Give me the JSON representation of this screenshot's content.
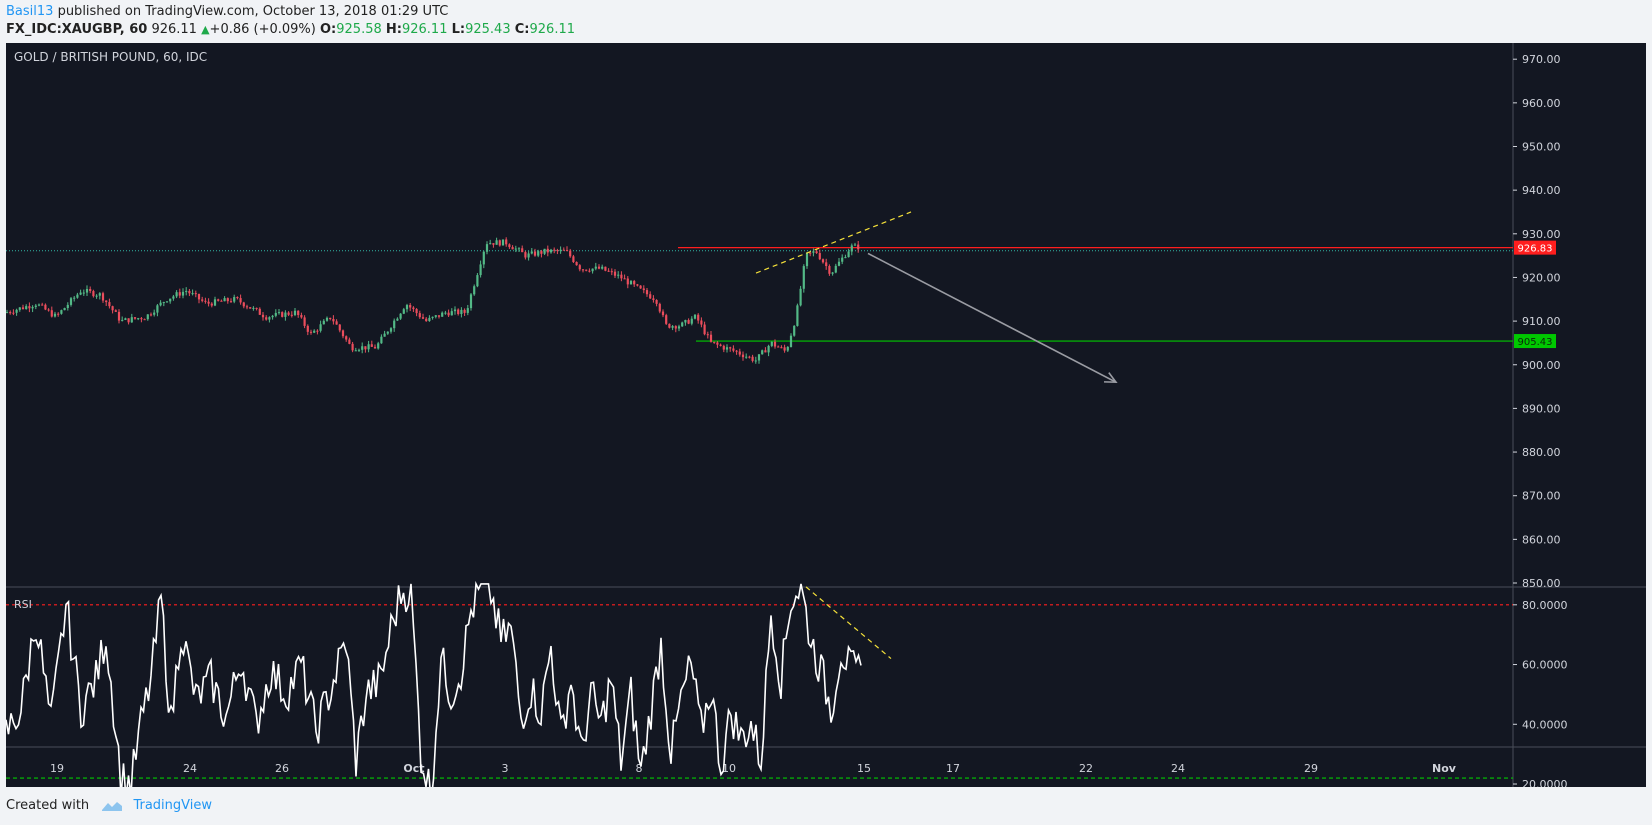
{
  "header": {
    "author": "Basil13",
    "published_text": " published on TradingView.com, October 13, 2018 01:29 UTC",
    "symbol": "FX_IDC:XAUGBP, 60",
    "price": "926.11",
    "change": "+0.86 (+0.09%)",
    "o_label": "O:",
    "o_value": "925.58",
    "h_label": "H:",
    "h_value": "926.11",
    "l_label": "L:",
    "l_value": "925.43",
    "c_label": "C:",
    "c_value": "926.11"
  },
  "footer": {
    "created_with": "Created with",
    "brand": "TradingView"
  },
  "colors": {
    "background": "#131722",
    "grid": "#2a2e39",
    "axis_text": "#d1d4dc",
    "up": "#53b987",
    "down": "#eb4d5c",
    "red_line": "#ff1e1e",
    "green_line": "#00c800",
    "rsi": "#ffffff",
    "trend_dashed": "#f6e23a",
    "arrow": "#9a9ca3"
  },
  "chart_data": {
    "type": "candlestick",
    "title": "GOLD / BRITISH POUND, 60, IDC",
    "y_ticks": [
      "970.00",
      "960.00",
      "950.00",
      "940.00",
      "930.00",
      "920.00",
      "910.00",
      "900.00",
      "890.00",
      "880.00",
      "870.00",
      "860.00",
      "850.00"
    ],
    "ylim": [
      850,
      973
    ],
    "x_ticks": [
      "19",
      "24",
      "26",
      "Oct",
      "3",
      "8",
      "10",
      "15",
      "17",
      "22",
      "24",
      "29",
      "Nov"
    ],
    "price_path": [
      [
        0,
        912
      ],
      [
        30,
        914
      ],
      [
        50,
        911
      ],
      [
        75,
        917
      ],
      [
        95,
        916
      ],
      [
        115,
        910
      ],
      [
        140,
        911
      ],
      [
        160,
        915
      ],
      [
        180,
        917
      ],
      [
        200,
        914
      ],
      [
        230,
        915
      ],
      [
        260,
        911
      ],
      [
        290,
        912
      ],
      [
        305,
        907
      ],
      [
        325,
        911
      ],
      [
        345,
        904
      ],
      [
        370,
        904
      ],
      [
        385,
        909
      ],
      [
        400,
        914
      ],
      [
        420,
        910
      ],
      [
        440,
        912
      ],
      [
        460,
        912
      ],
      [
        470,
        920
      ],
      [
        480,
        928
      ],
      [
        500,
        928
      ],
      [
        520,
        925
      ],
      [
        540,
        926
      ],
      [
        560,
        926
      ],
      [
        575,
        922
      ],
      [
        595,
        922
      ],
      [
        615,
        920
      ],
      [
        635,
        917
      ],
      [
        650,
        915
      ],
      [
        660,
        909
      ],
      [
        675,
        909
      ],
      [
        690,
        911
      ],
      [
        705,
        905
      ],
      [
        730,
        903
      ],
      [
        750,
        901
      ],
      [
        765,
        905
      ],
      [
        780,
        903
      ],
      [
        790,
        911
      ],
      [
        800,
        925
      ],
      [
        810,
        926
      ],
      [
        825,
        921
      ],
      [
        835,
        924
      ],
      [
        845,
        927
      ],
      [
        855,
        927
      ]
    ],
    "levels": [
      {
        "label": "926.83",
        "value": 926.83,
        "color": "#ff1e1e"
      },
      {
        "label": "905.43",
        "value": 905.43,
        "color": "#00c800"
      }
    ],
    "last_close": 926.11,
    "rsi": {
      "label": "RSI",
      "y_ticks": [
        "80.0000",
        "60.0000",
        "40.0000",
        "20.0000"
      ],
      "ylim": [
        10,
        90
      ],
      "overbought": 80,
      "oversold": 22,
      "path": [
        [
          0,
          37
        ],
        [
          15,
          45
        ],
        [
          30,
          75
        ],
        [
          45,
          40
        ],
        [
          60,
          80
        ],
        [
          75,
          45
        ],
        [
          90,
          55
        ],
        [
          100,
          70
        ],
        [
          115,
          22
        ],
        [
          125,
          20
        ],
        [
          135,
          40
        ],
        [
          145,
          55
        ],
        [
          155,
          82
        ],
        [
          165,
          40
        ],
        [
          175,
          72
        ],
        [
          190,
          48
        ],
        [
          205,
          55
        ],
        [
          220,
          42
        ],
        [
          235,
          62
        ],
        [
          250,
          40
        ],
        [
          265,
          58
        ],
        [
          280,
          50
        ],
        [
          295,
          60
        ],
        [
          310,
          38
        ],
        [
          325,
          52
        ],
        [
          340,
          68
        ],
        [
          350,
          28
        ],
        [
          360,
          50
        ],
        [
          375,
          55
        ],
        [
          385,
          72
        ],
        [
          395,
          84
        ],
        [
          405,
          85
        ],
        [
          415,
          30
        ],
        [
          425,
          17
        ],
        [
          435,
          62
        ],
        [
          445,
          50
        ],
        [
          455,
          58
        ],
        [
          465,
          78
        ],
        [
          475,
          86
        ],
        [
          485,
          84
        ],
        [
          495,
          68
        ],
        [
          505,
          72
        ],
        [
          515,
          42
        ],
        [
          525,
          52
        ],
        [
          535,
          44
        ],
        [
          545,
          66
        ],
        [
          555,
          36
        ],
        [
          565,
          55
        ],
        [
          575,
          30
        ],
        [
          585,
          50
        ],
        [
          595,
          40
        ],
        [
          605,
          55
        ],
        [
          615,
          28
        ],
        [
          625,
          50
        ],
        [
          635,
          24
        ],
        [
          645,
          45
        ],
        [
          655,
          67
        ],
        [
          665,
          30
        ],
        [
          675,
          48
        ],
        [
          685,
          60
        ],
        [
          695,
          38
        ],
        [
          705,
          52
        ],
        [
          715,
          26
        ],
        [
          725,
          44
        ],
        [
          735,
          35
        ],
        [
          745,
          40
        ],
        [
          755,
          28
        ],
        [
          765,
          78
        ],
        [
          775,
          55
        ],
        [
          785,
          82
        ],
        [
          795,
          86
        ],
        [
          805,
          68
        ],
        [
          815,
          58
        ],
        [
          825,
          45
        ],
        [
          835,
          65
        ],
        [
          845,
          58
        ],
        [
          855,
          57
        ]
      ]
    },
    "annotations": [
      {
        "type": "dashed_trend",
        "chart": "price",
        "from": [
          750,
          921
        ],
        "to": [
          905,
          935
        ]
      },
      {
        "type": "dashed_trend",
        "chart": "rsi",
        "from": [
          800,
          86
        ],
        "to": [
          885,
          62
        ]
      },
      {
        "type": "arrow",
        "chart": "price",
        "from": [
          862,
          925.5
        ],
        "to": [
          1110,
          896
        ]
      }
    ]
  }
}
